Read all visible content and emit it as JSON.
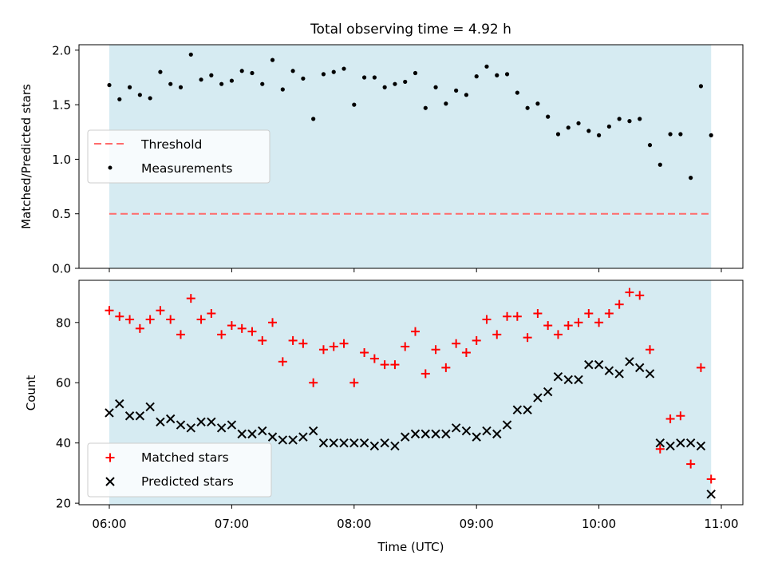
{
  "title": "Total observing time = 4.92 h",
  "chart_data": [
    {
      "type": "scatter",
      "ylabel": "Matched/Predicted stars",
      "ylim": [
        0,
        2.05
      ],
      "yticks": [
        0.0,
        0.5,
        1.0,
        1.5,
        2.0
      ],
      "ytick_labels": [
        "0.0",
        "0.5",
        "1.0",
        "1.5",
        "2.0"
      ],
      "shaded_span": [
        "06:00",
        "10:55"
      ],
      "threshold": 0.5,
      "legend": [
        "Threshold",
        "Measurements"
      ],
      "legend_position": "center-left",
      "series": [
        {
          "name": "Measurements",
          "x": [
            "06:00",
            "06:05",
            "06:10",
            "06:15",
            "06:20",
            "06:25",
            "06:30",
            "06:35",
            "06:40",
            "06:45",
            "06:50",
            "06:55",
            "07:00",
            "07:05",
            "07:10",
            "07:15",
            "07:20",
            "07:25",
            "07:30",
            "07:35",
            "07:40",
            "07:45",
            "07:50",
            "07:55",
            "08:00",
            "08:05",
            "08:10",
            "08:15",
            "08:20",
            "08:25",
            "08:30",
            "08:35",
            "08:40",
            "08:45",
            "08:50",
            "08:55",
            "09:00",
            "09:05",
            "09:10",
            "09:15",
            "09:20",
            "09:25",
            "09:30",
            "09:35",
            "09:40",
            "09:45",
            "09:50",
            "09:55",
            "10:00",
            "10:05",
            "10:10",
            "10:15",
            "10:20",
            "10:25",
            "10:30",
            "10:35",
            "10:40",
            "10:45",
            "10:50",
            "10:55"
          ],
          "y": [
            1.68,
            1.55,
            1.66,
            1.59,
            1.56,
            1.8,
            1.69,
            1.66,
            1.96,
            1.73,
            1.77,
            1.69,
            1.72,
            1.81,
            1.79,
            1.69,
            1.91,
            1.64,
            1.81,
            1.74,
            1.37,
            1.78,
            1.8,
            1.83,
            1.5,
            1.75,
            1.75,
            1.66,
            1.69,
            1.71,
            1.79,
            1.47,
            1.66,
            1.51,
            1.63,
            1.59,
            1.76,
            1.85,
            1.77,
            1.78,
            1.61,
            1.47,
            1.51,
            1.39,
            1.23,
            1.29,
            1.33,
            1.26,
            1.22,
            1.3,
            1.37,
            1.35,
            1.37,
            1.13,
            0.95,
            1.23,
            1.23,
            0.83,
            1.67,
            1.22
          ]
        }
      ]
    },
    {
      "type": "scatter",
      "ylabel": "Count",
      "xlabel": "Time (UTC)",
      "ylim": [
        19.5,
        94
      ],
      "yticks": [
        20,
        40,
        60,
        80
      ],
      "ytick_labels": [
        "20",
        "40",
        "60",
        "80"
      ],
      "xticks": [
        "06:00",
        "07:00",
        "08:00",
        "09:00",
        "10:00",
        "11:00"
      ],
      "shaded_span": [
        "06:00",
        "10:55"
      ],
      "legend": [
        "Matched stars",
        "Predicted stars"
      ],
      "legend_position": "lower-left",
      "series": [
        {
          "name": "Matched stars",
          "color": "#ff0000",
          "marker": "plus",
          "x": [
            "06:00",
            "06:05",
            "06:10",
            "06:15",
            "06:20",
            "06:25",
            "06:30",
            "06:35",
            "06:40",
            "06:45",
            "06:50",
            "06:55",
            "07:00",
            "07:05",
            "07:10",
            "07:15",
            "07:20",
            "07:25",
            "07:30",
            "07:35",
            "07:40",
            "07:45",
            "07:50",
            "07:55",
            "08:00",
            "08:05",
            "08:10",
            "08:15",
            "08:20",
            "08:25",
            "08:30",
            "08:35",
            "08:40",
            "08:45",
            "08:50",
            "08:55",
            "09:00",
            "09:05",
            "09:10",
            "09:15",
            "09:20",
            "09:25",
            "09:30",
            "09:35",
            "09:40",
            "09:45",
            "09:50",
            "09:55",
            "10:00",
            "10:05",
            "10:10",
            "10:15",
            "10:20",
            "10:25",
            "10:30",
            "10:35",
            "10:40",
            "10:45",
            "10:50",
            "10:55"
          ],
          "y": [
            84,
            82,
            81,
            78,
            81,
            84,
            81,
            76,
            88,
            81,
            83,
            76,
            79,
            78,
            77,
            74,
            80,
            67,
            74,
            73,
            60,
            71,
            72,
            73,
            60,
            70,
            68,
            66,
            66,
            72,
            77,
            63,
            71,
            65,
            73,
            70,
            74,
            81,
            76,
            82,
            82,
            75,
            83,
            79,
            76,
            79,
            80,
            83,
            80,
            83,
            86,
            90,
            89,
            71,
            38,
            48,
            49,
            33,
            65,
            28
          ]
        },
        {
          "name": "Predicted stars",
          "color": "#000000",
          "marker": "x",
          "x": [
            "06:00",
            "06:05",
            "06:10",
            "06:15",
            "06:20",
            "06:25",
            "06:30",
            "06:35",
            "06:40",
            "06:45",
            "06:50",
            "06:55",
            "07:00",
            "07:05",
            "07:10",
            "07:15",
            "07:20",
            "07:25",
            "07:30",
            "07:35",
            "07:40",
            "07:45",
            "07:50",
            "07:55",
            "08:00",
            "08:05",
            "08:10",
            "08:15",
            "08:20",
            "08:25",
            "08:30",
            "08:35",
            "08:40",
            "08:45",
            "08:50",
            "08:55",
            "09:00",
            "09:05",
            "09:10",
            "09:15",
            "09:20",
            "09:25",
            "09:30",
            "09:35",
            "09:40",
            "09:45",
            "09:50",
            "09:55",
            "10:00",
            "10:05",
            "10:10",
            "10:15",
            "10:20",
            "10:25",
            "10:30",
            "10:35",
            "10:40",
            "10:45",
            "10:50",
            "10:55"
          ],
          "y": [
            50,
            53,
            49,
            49,
            52,
            47,
            48,
            46,
            45,
            47,
            47,
            45,
            46,
            43,
            43,
            44,
            42,
            41,
            41,
            42,
            44,
            40,
            40,
            40,
            40,
            40,
            39,
            40,
            39,
            42,
            43,
            43,
            43,
            43,
            45,
            44,
            42,
            44,
            43,
            46,
            51,
            51,
            55,
            57,
            62,
            61,
            61,
            66,
            66,
            64,
            63,
            67,
            65,
            63,
            40,
            39,
            40,
            40,
            39,
            23
          ]
        }
      ]
    }
  ],
  "style": {
    "shade_color": "#add8e6",
    "threshold_color": "#ff6b6b"
  }
}
